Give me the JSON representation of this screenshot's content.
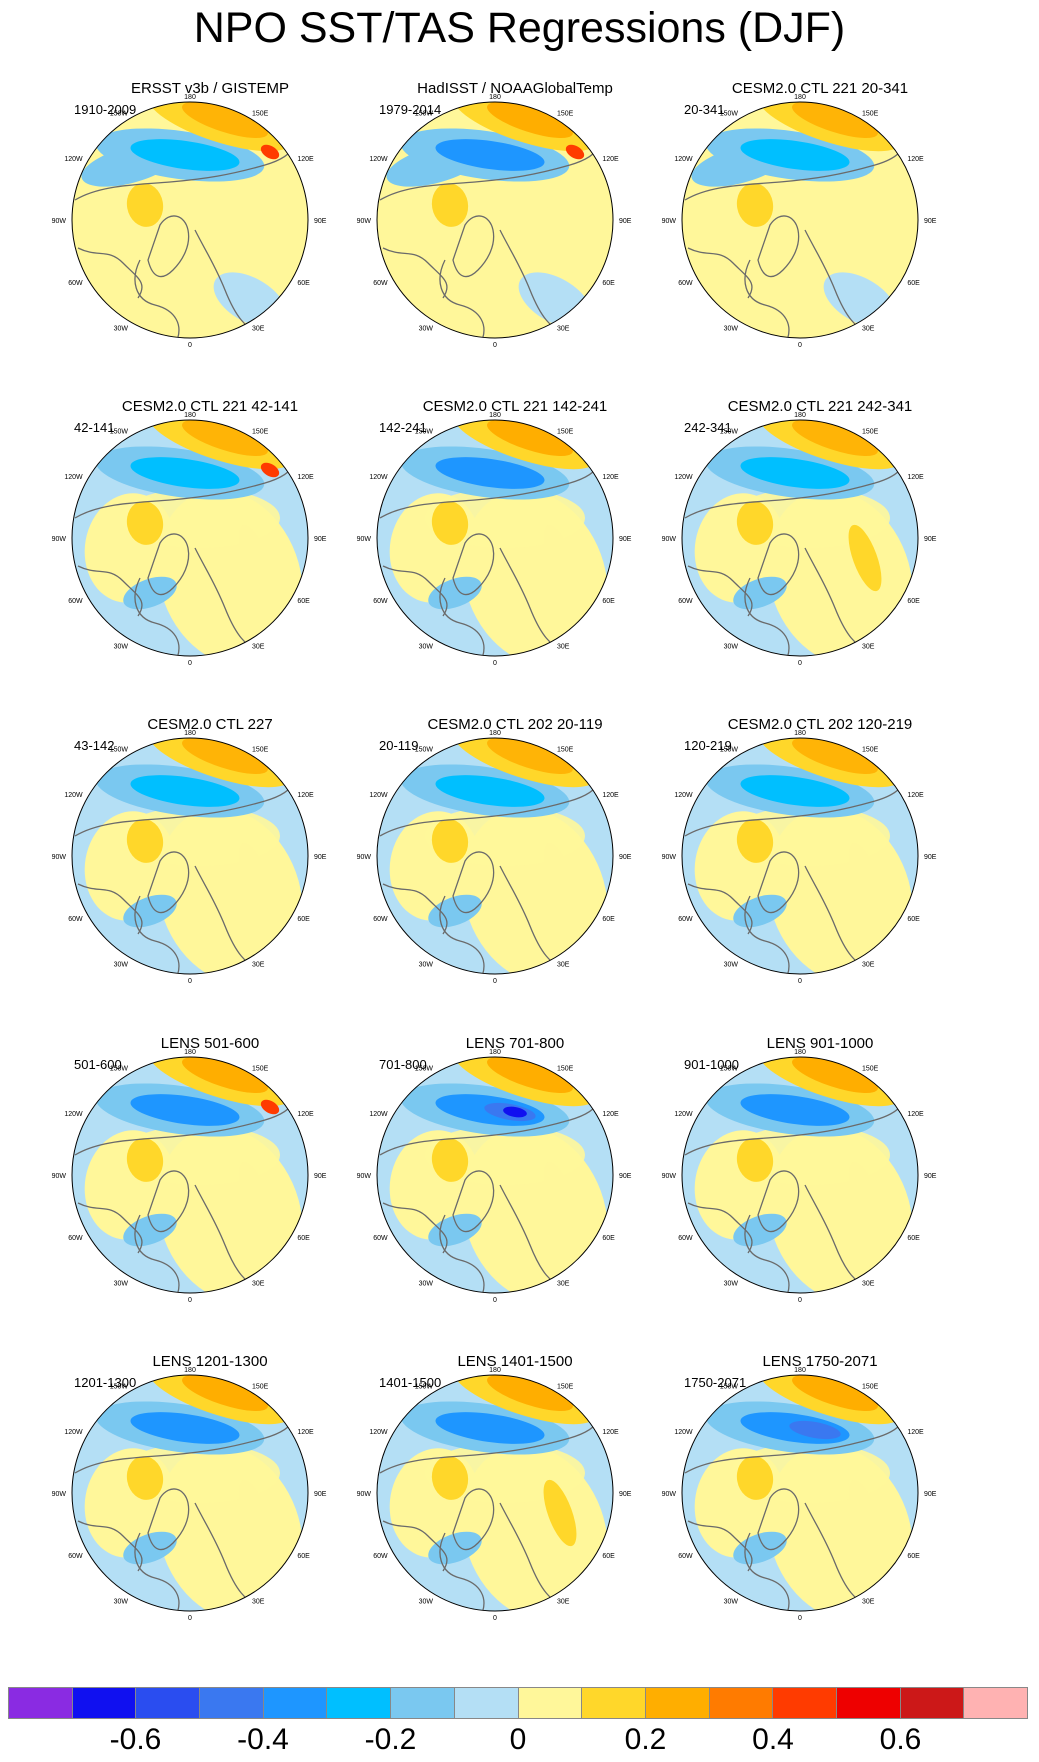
{
  "title": "NPO SST/TAS Regressions (DJF)",
  "map_labels": {
    "lon_top": "180",
    "lon_top_left": "150W",
    "lon_top_right": "150E",
    "lon_upper_left": "120W",
    "lon_upper_right": "120E",
    "lon_left": "90W",
    "lon_right": "90E",
    "lon_lower_left": "60W",
    "lon_lower_right": "60E",
    "lon_bottom_left": "30W",
    "lon_bottom_right": "30E",
    "lon_bottom": "0"
  },
  "panels": [
    {
      "title": "ERSST v3b / GISTEMP",
      "period": "1910-2009"
    },
    {
      "title": "HadISST / NOAAGlobalTemp",
      "period": "1979-2014"
    },
    {
      "title": "CESM2.0 CTL 221 20-341",
      "period": "20-341"
    },
    {
      "title": "CESM2.0 CTL 221 42-141",
      "period": "42-141"
    },
    {
      "title": "CESM2.0 CTL 221 142-241",
      "period": "142-241"
    },
    {
      "title": "CESM2.0 CTL 221 242-341",
      "period": "242-341"
    },
    {
      "title": "CESM2.0 CTL 227",
      "period": "43-142"
    },
    {
      "title": "CESM2.0 CTL 202 20-119",
      "period": "20-119"
    },
    {
      "title": "CESM2.0 CTL 202 120-219",
      "period": "120-219"
    },
    {
      "title": "LENS 501-600",
      "period": "501-600"
    },
    {
      "title": "LENS 701-800",
      "period": "701-800"
    },
    {
      "title": "LENS 901-1000",
      "period": "901-1000"
    },
    {
      "title": "LENS 1201-1300",
      "period": "1201-1300"
    },
    {
      "title": "LENS 1401-1500",
      "period": "1401-1500"
    },
    {
      "title": "LENS 1750-2071",
      "period": "1750-2071"
    }
  ],
  "colorbar": {
    "colors": [
      "#8a2be2",
      "#1010f0",
      "#2a4df0",
      "#3a78f0",
      "#1e96ff",
      "#00bfff",
      "#7ac8f0",
      "#b4dff5",
      "#fff79a",
      "#ffd72a",
      "#ffae00",
      "#ff7b00",
      "#ff3b00",
      "#ee0000",
      "#cc1818",
      "#ffb2b2"
    ],
    "labels": [
      "-0.6",
      "-0.4",
      "-0.2",
      "0",
      "0.2",
      "0.4",
      "0.6"
    ],
    "label_values": [
      -0.6,
      -0.4,
      -0.2,
      0,
      0.2,
      0.4,
      0.6
    ],
    "min": -0.8,
    "max": 0.8
  }
}
